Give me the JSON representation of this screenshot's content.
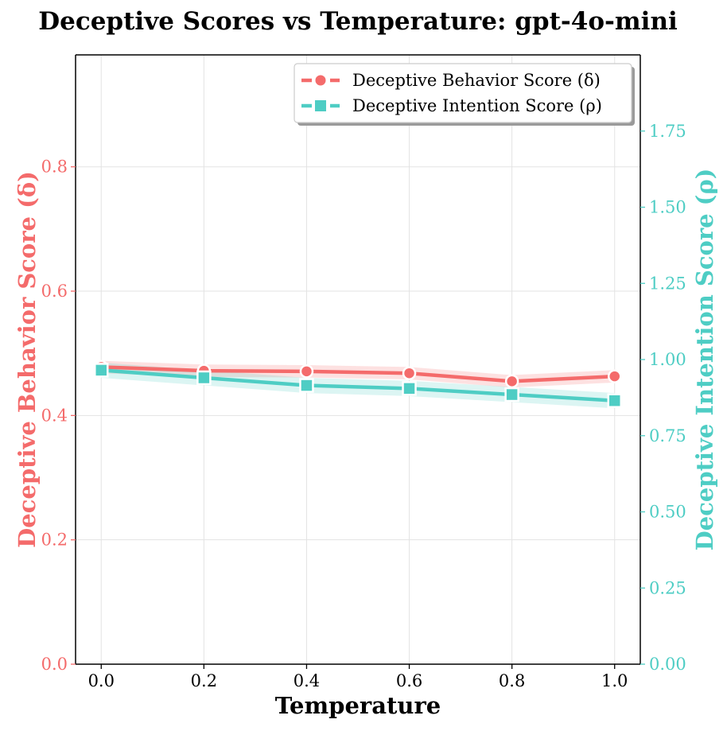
{
  "chart_data": {
    "type": "line",
    "title": "Deceptive Scores vs Temperature: gpt-4o-mini",
    "xlabel": "Temperature",
    "ylabel_left": "Deceptive Behavior Score (δ)",
    "ylabel_right": "Deceptive Intention Score (ρ)",
    "x": [
      0.0,
      0.2,
      0.4,
      0.6,
      0.8,
      1.0
    ],
    "x_tick_labels": [
      "0.0",
      "0.2",
      "0.4",
      "0.6",
      "0.8",
      "1.0"
    ],
    "xlim": [
      -0.05,
      1.05
    ],
    "ylim_left": [
      0.0,
      0.98
    ],
    "ylim_right": [
      0.0,
      2.0
    ],
    "left_ticks": [
      0.0,
      0.2,
      0.4,
      0.6,
      0.8
    ],
    "left_tick_labels": [
      "0.0",
      "0.2",
      "0.4",
      "0.6",
      "0.8"
    ],
    "right_ticks": [
      0.0,
      0.25,
      0.5,
      0.75,
      1.0,
      1.25,
      1.5,
      1.75
    ],
    "right_tick_labels": [
      "0.00",
      "0.25",
      "0.50",
      "0.75",
      "1.00",
      "1.25",
      "1.50",
      "1.75"
    ],
    "grid": true,
    "legend_position": "top-right",
    "series": [
      {
        "name": "Deceptive Behavior Score (δ)",
        "axis": "left",
        "marker": "circle",
        "color": "#F46B6B",
        "values": [
          0.478,
          0.472,
          0.471,
          0.468,
          0.455,
          0.463
        ],
        "band_low": [
          0.468,
          0.462,
          0.461,
          0.458,
          0.445,
          0.453
        ],
        "band_high": [
          0.488,
          0.482,
          0.481,
          0.478,
          0.465,
          0.473
        ]
      },
      {
        "name": "Deceptive Intention Score (ρ)",
        "axis": "right",
        "marker": "square",
        "color": "#4ECDC4",
        "values": [
          0.965,
          0.94,
          0.915,
          0.905,
          0.885,
          0.865
        ],
        "band_low": [
          0.94,
          0.915,
          0.89,
          0.88,
          0.86,
          0.84
        ],
        "band_high": [
          0.99,
          0.965,
          0.94,
          0.93,
          0.91,
          0.89
        ]
      }
    ]
  }
}
